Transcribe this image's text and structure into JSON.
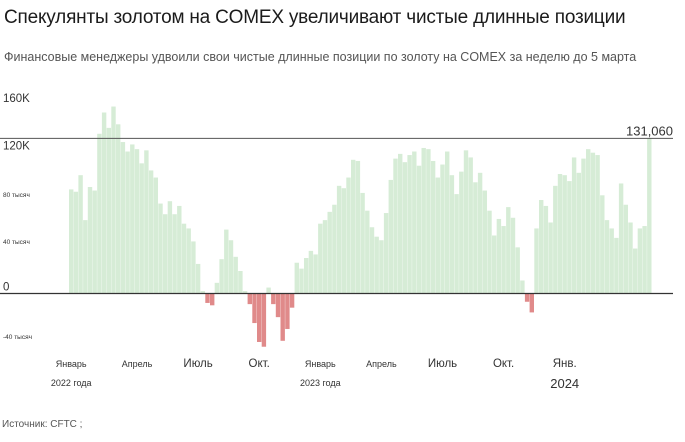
{
  "header": {
    "title": "Спекулянты золотом на COMEX увеличивают чистые длинные позиции",
    "subtitle": "Финансовые менеджеры удвоили свои чистые длинные позиции по золоту на COMEX за неделю до 5 марта"
  },
  "footer": {
    "source": "Источник: CFTC ;"
  },
  "colors": {
    "positive": "#d6ecd6",
    "negative": "#e08a8a",
    "reference_line": "#555555",
    "zero_line": "#333333"
  },
  "chart_data": {
    "type": "bar",
    "title": "",
    "xlabel": "",
    "ylabel": "",
    "ylim": [
      -52000,
      172000
    ],
    "grid": false,
    "reference_line": {
      "value": 131060,
      "label": "131,060"
    },
    "y_ticks": [
      {
        "value": 160000,
        "label": "160K"
      },
      {
        "value": 120000,
        "label": "120K"
      },
      {
        "value": 80000,
        "label": "80 тысяч"
      },
      {
        "value": 40000,
        "label": "40 тысяч"
      },
      {
        "value": 0,
        "label": "0"
      },
      {
        "value": -40000,
        "label": "-40 тысяч"
      }
    ],
    "x_ticks": [
      {
        "index": 0,
        "label": "Январь",
        "sublabel": "2022 года"
      },
      {
        "index": 14,
        "label": "Апрель",
        "sublabel": ""
      },
      {
        "index": 27,
        "label": "Июль",
        "sublabel": ""
      },
      {
        "index": 40,
        "label": "Окт.",
        "sublabel": ""
      },
      {
        "index": 53,
        "label": "Январь",
        "sublabel": "2023 года"
      },
      {
        "index": 66,
        "label": "Апрель",
        "sublabel": ""
      },
      {
        "index": 79,
        "label": "Июль",
        "sublabel": ""
      },
      {
        "index": 92,
        "label": "Окт.",
        "sublabel": ""
      },
      {
        "index": 105,
        "label": "Янв.",
        "sublabel": "2024"
      }
    ],
    "series": [
      {
        "values": [
          88000,
          86000,
          100000,
          62000,
          90000,
          87000,
          135000,
          153000,
          140000,
          158000,
          143000,
          128000,
          120000,
          126000,
          122000,
          110000,
          121000,
          104000,
          98000,
          76000,
          67000,
          78000,
          67000,
          74000,
          59000,
          55000,
          44000,
          25000,
          2000,
          -8000,
          -10000,
          9000,
          29000,
          54000,
          45000,
          31000,
          19000,
          2000,
          -9000,
          -25000,
          -41000,
          -45000,
          5000,
          -9000,
          -20000,
          -40000,
          -30000,
          -12000,
          26000,
          21000,
          30000,
          36000,
          33000,
          59000,
          62000,
          69000,
          75000,
          91000,
          89000,
          98000,
          113000,
          112000,
          85000,
          70000,
          56000,
          48000,
          45000,
          68000,
          96000,
          114000,
          118000,
          111000,
          117000,
          120000,
          108000,
          123000,
          122000,
          112000,
          98000,
          109000,
          120000,
          100000,
          84000,
          103000,
          121000,
          115000,
          94000,
          102000,
          87000,
          70000,
          49000,
          63000,
          57000,
          73000,
          64000,
          39000,
          11000,
          -7000,
          -16000,
          55000,
          79000,
          74000,
          60000,
          91000,
          101000,
          100000,
          95000,
          115000,
          102000,
          114000,
          122000,
          119000,
          117000,
          83000,
          62000,
          55000,
          47000,
          93000,
          75000,
          60000,
          38000,
          55000,
          57000,
          131060
        ]
      }
    ]
  }
}
